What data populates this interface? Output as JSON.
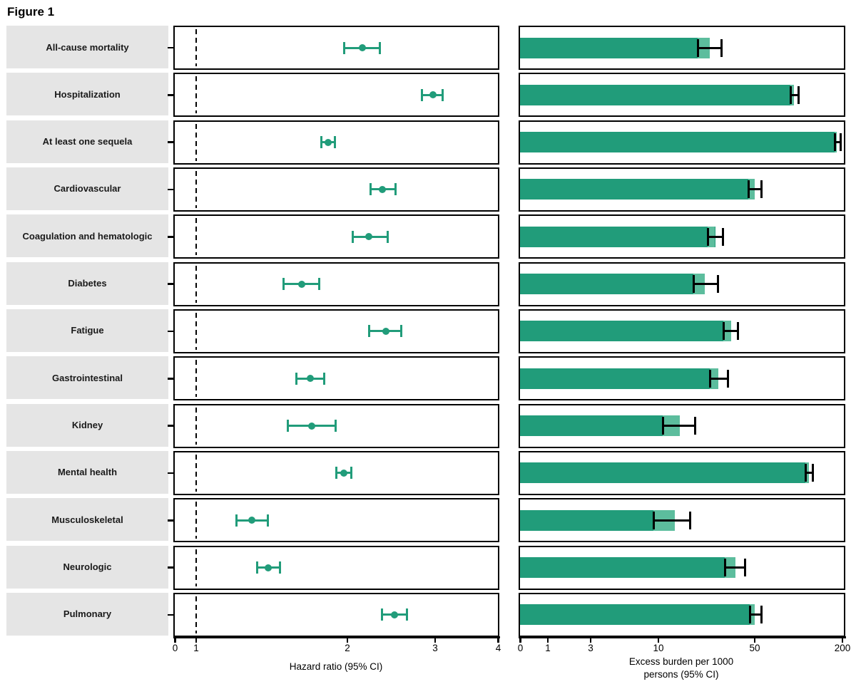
{
  "figure": {
    "title": "Figure 1"
  },
  "colors": {
    "marker_green": "#219c7a",
    "bar_green": "#219c7a",
    "bar_tip_green": "#5cbd9d",
    "ci_black": "#000000",
    "label_box_bg": "#e5e5e5",
    "text_black": "#1a1a1a"
  },
  "chart_data": [
    {
      "type": "forest",
      "panel": "left",
      "xlabel": "Hazard ratio (95% CI)",
      "x_scale": "log above 1, compressed linear 0-1",
      "x_ticks": [
        0,
        1,
        2,
        3,
        4
      ],
      "x_tick_labels": [
        "0",
        "1",
        "2",
        "3",
        "4"
      ],
      "xlim": [
        0,
        4
      ],
      "reference_line_x": 1,
      "grid": false,
      "legend": false,
      "categories": [
        "All-cause mortality",
        "Hospitalization",
        "At least one sequela",
        "Cardiovascular",
        "Coagulation and hematologic",
        "Diabetes",
        "Fatigue",
        "Gastrointestinal",
        "Kidney",
        "Mental health",
        "Musculoskeletal",
        "Neurologic",
        "Pulmonary"
      ],
      "series": [
        {
          "name": "Hazard ratio (95% CI)",
          "points": [
            2.14,
            2.97,
            1.83,
            2.35,
            2.21,
            1.62,
            2.39,
            1.69,
            1.7,
            1.97,
            1.29,
            1.39,
            2.49
          ],
          "ci_low": [
            1.97,
            2.82,
            1.77,
            2.22,
            2.05,
            1.49,
            2.21,
            1.58,
            1.52,
            1.9,
            1.2,
            1.32,
            2.34
          ],
          "ci_high": [
            2.33,
            3.11,
            1.89,
            2.5,
            2.41,
            1.76,
            2.57,
            1.8,
            1.9,
            2.04,
            1.39,
            1.47,
            2.64
          ]
        }
      ]
    },
    {
      "type": "bar",
      "panel": "right",
      "orientation": "horizontal",
      "xlabel_lines": [
        "Excess burden per 1000",
        "persons (95% CI)"
      ],
      "x_scale": "log above 1, compressed linear 0-1",
      "x_ticks": [
        0,
        1,
        3,
        10,
        50,
        200
      ],
      "x_tick_labels": [
        "0",
        "1",
        "3",
        "10",
        "50",
        "200"
      ],
      "xlim": [
        0,
        200
      ],
      "grid": false,
      "legend": false,
      "categories": [
        "All-cause mortality",
        "Hospitalization",
        "At least one sequela",
        "Cardiovascular",
        "Coagulation and hematologic",
        "Diabetes",
        "Fatigue",
        "Gastrointestinal",
        "Kidney",
        "Mental health",
        "Musculoskeletal",
        "Neurologic",
        "Pulmonary"
      ],
      "series": [
        {
          "name": "Excess burden per 1000 persons (95% CI)",
          "points": [
            23.7,
            93.4,
            182.5,
            50.0,
            25.8,
            21.8,
            33.8,
            27.3,
            14.3,
            118.4,
            13.1,
            36.2,
            50.0
          ],
          "ci_low": [
            19.2,
            88.3,
            176.5,
            45.0,
            22.9,
            17.9,
            29.7,
            23.5,
            10.7,
            111.9,
            9.2,
            30.4,
            46.0
          ],
          "ci_high": [
            29.0,
            100.9,
            195.5,
            56.0,
            29.7,
            27.3,
            38.1,
            32.3,
            18.5,
            125.4,
            17.2,
            42.9,
            56.0
          ]
        }
      ]
    }
  ]
}
